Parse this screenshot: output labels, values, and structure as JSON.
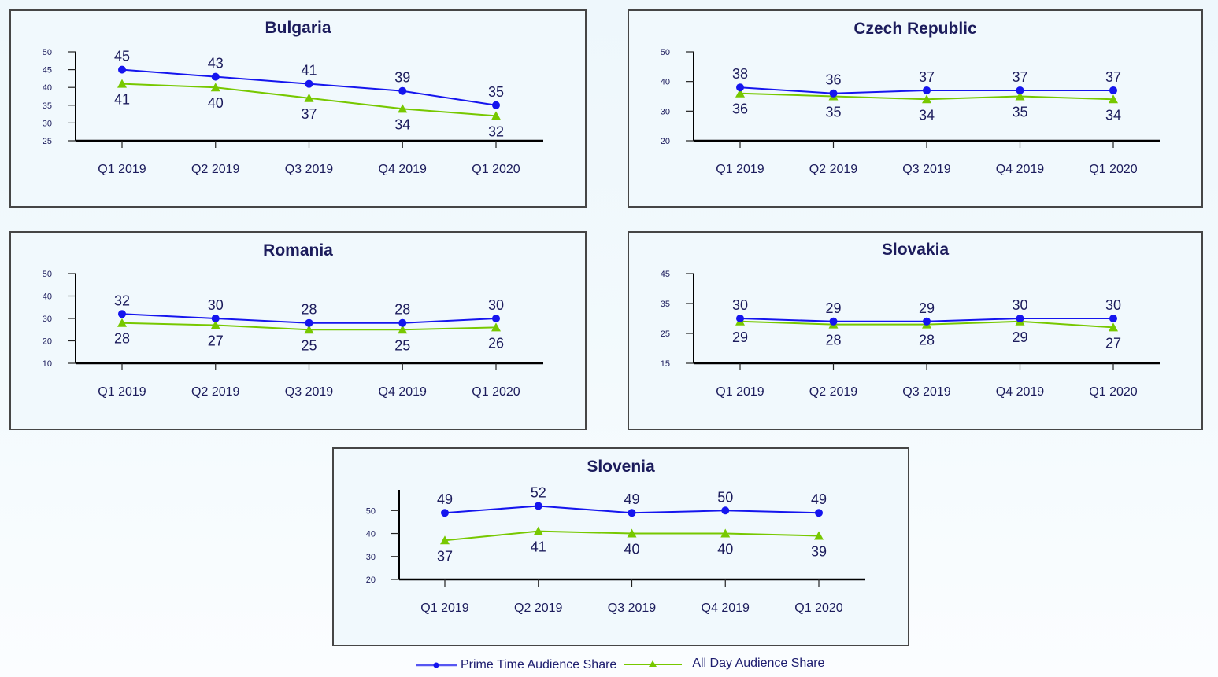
{
  "chart_data": [
    {
      "type": "line",
      "title": "Bulgaria",
      "categories": [
        "Q1 2019",
        "Q2 2019",
        "Q3 2019",
        "Q4 2019",
        "Q1 2020"
      ],
      "ylim": [
        25,
        50
      ],
      "yticks": [
        25,
        30,
        35,
        40,
        45,
        50
      ],
      "series": [
        {
          "name": "Prime Time Audience Share",
          "values": [
            45,
            43,
            41,
            39,
            35
          ]
        },
        {
          "name": "All Day Audience Share",
          "values": [
            41,
            40,
            37,
            34,
            32
          ]
        }
      ]
    },
    {
      "type": "line",
      "title": "Czech Republic",
      "categories": [
        "Q1 2019",
        "Q2 2019",
        "Q3 2019",
        "Q4 2019",
        "Q1 2020"
      ],
      "ylim": [
        20,
        50
      ],
      "yticks": [
        20,
        30,
        40,
        50
      ],
      "series": [
        {
          "name": "Prime Time Audience Share",
          "values": [
            38,
            36,
            37,
            37,
            37
          ]
        },
        {
          "name": "All Day Audience Share",
          "values": [
            36,
            35,
            34,
            35,
            34
          ]
        }
      ]
    },
    {
      "type": "line",
      "title": "Romania",
      "categories": [
        "Q1 2019",
        "Q2 2019",
        "Q3 2019",
        "Q4 2019",
        "Q1 2020"
      ],
      "ylim": [
        10,
        50
      ],
      "yticks": [
        10,
        20,
        30,
        40,
        50
      ],
      "series": [
        {
          "name": "Prime Time Audience Share",
          "values": [
            32,
            30,
            28,
            28,
            30
          ]
        },
        {
          "name": "All Day Audience Share",
          "values": [
            28,
            27,
            25,
            25,
            26
          ]
        }
      ]
    },
    {
      "type": "line",
      "title": "Slovakia",
      "categories": [
        "Q1 2019",
        "Q2 2019",
        "Q3 2019",
        "Q4 2019",
        "Q1 2020"
      ],
      "ylim": [
        15,
        45
      ],
      "yticks": [
        15,
        25,
        35,
        45
      ],
      "series": [
        {
          "name": "Prime Time Audience Share",
          "values": [
            30,
            29,
            29,
            30,
            30
          ]
        },
        {
          "name": "All Day Audience Share",
          "values": [
            29,
            28,
            28,
            29,
            27
          ]
        }
      ]
    },
    {
      "type": "line",
      "title": "Slovenia",
      "categories": [
        "Q1 2019",
        "Q2 2019",
        "Q3 2019",
        "Q4 2019",
        "Q1 2020"
      ],
      "ylim": [
        20,
        59
      ],
      "yticks": [
        20,
        30,
        40,
        50
      ],
      "series": [
        {
          "name": "Prime Time Audience Share",
          "values": [
            49,
            52,
            49,
            50,
            49
          ]
        },
        {
          "name": "All Day Audience Share",
          "values": [
            37,
            41,
            40,
            40,
            39
          ]
        }
      ]
    }
  ],
  "legend": {
    "position": "bottom-center",
    "items": [
      {
        "label": "Prime Time Audience Share",
        "color": "#1515ee",
        "marker": "circle"
      },
      {
        "label": "All Day Audience Share",
        "color": "#77c800",
        "marker": "triangle"
      }
    ]
  },
  "colors": {
    "text": "#1c1c5c",
    "axis": "#000000",
    "border": "#464646"
  }
}
